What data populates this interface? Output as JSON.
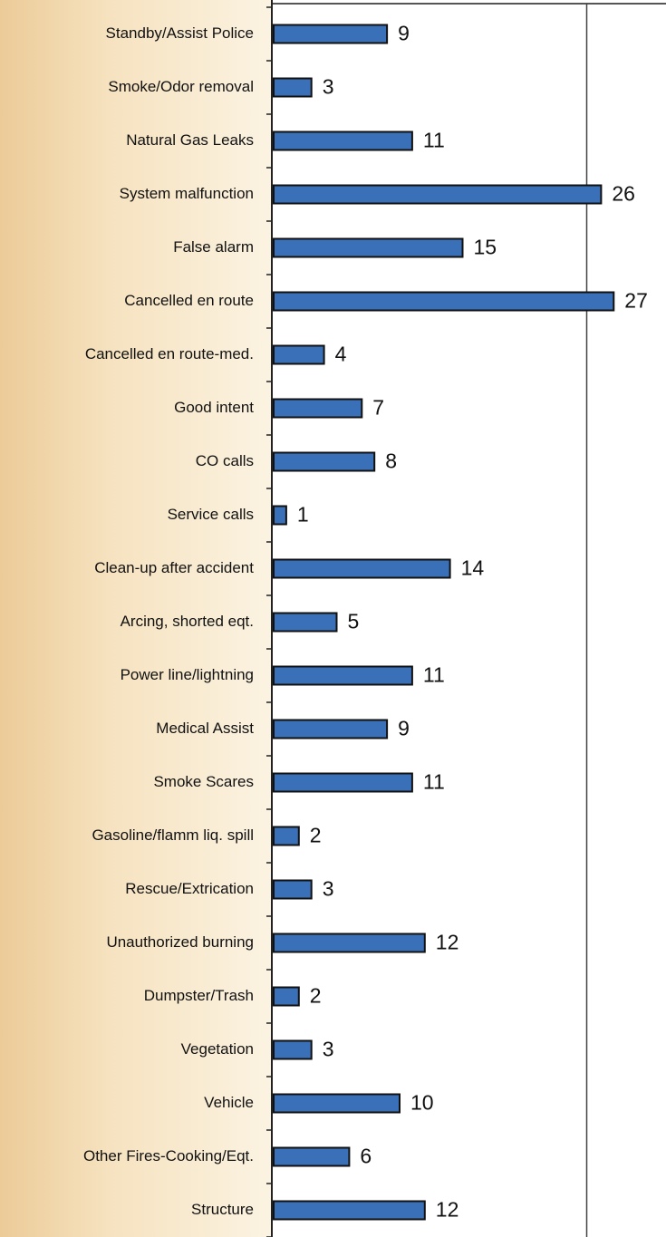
{
  "chart_data": {
    "type": "barh",
    "categories": [
      "Standby/Assist Police",
      "Smoke/Odor removal",
      "Natural Gas Leaks",
      "System malfunction",
      "False alarm",
      "Cancelled en route",
      "Cancelled en route-med.",
      "Good intent",
      "CO calls",
      "Service calls",
      "Clean-up after accident",
      "Arcing, shorted eqt.",
      "Power line/lightning",
      "Medical Assist",
      "Smoke Scares",
      "Gasoline/flamm liq. spill",
      "Rescue/Extrication",
      "Unauthorized burning",
      "Dumpster/Trash",
      "Vegetation",
      "Vehicle",
      "Other Fires-Cooking/Eqt.",
      "Structure"
    ],
    "values": [
      9,
      3,
      11,
      26,
      15,
      27,
      4,
      7,
      8,
      1,
      14,
      5,
      11,
      9,
      11,
      2,
      3,
      12,
      2,
      3,
      10,
      6,
      12
    ],
    "color": "#3a70b8",
    "xlim": [
      0,
      30
    ],
    "xticks": [
      25
    ],
    "xtick_labels": false,
    "grid": true
  }
}
